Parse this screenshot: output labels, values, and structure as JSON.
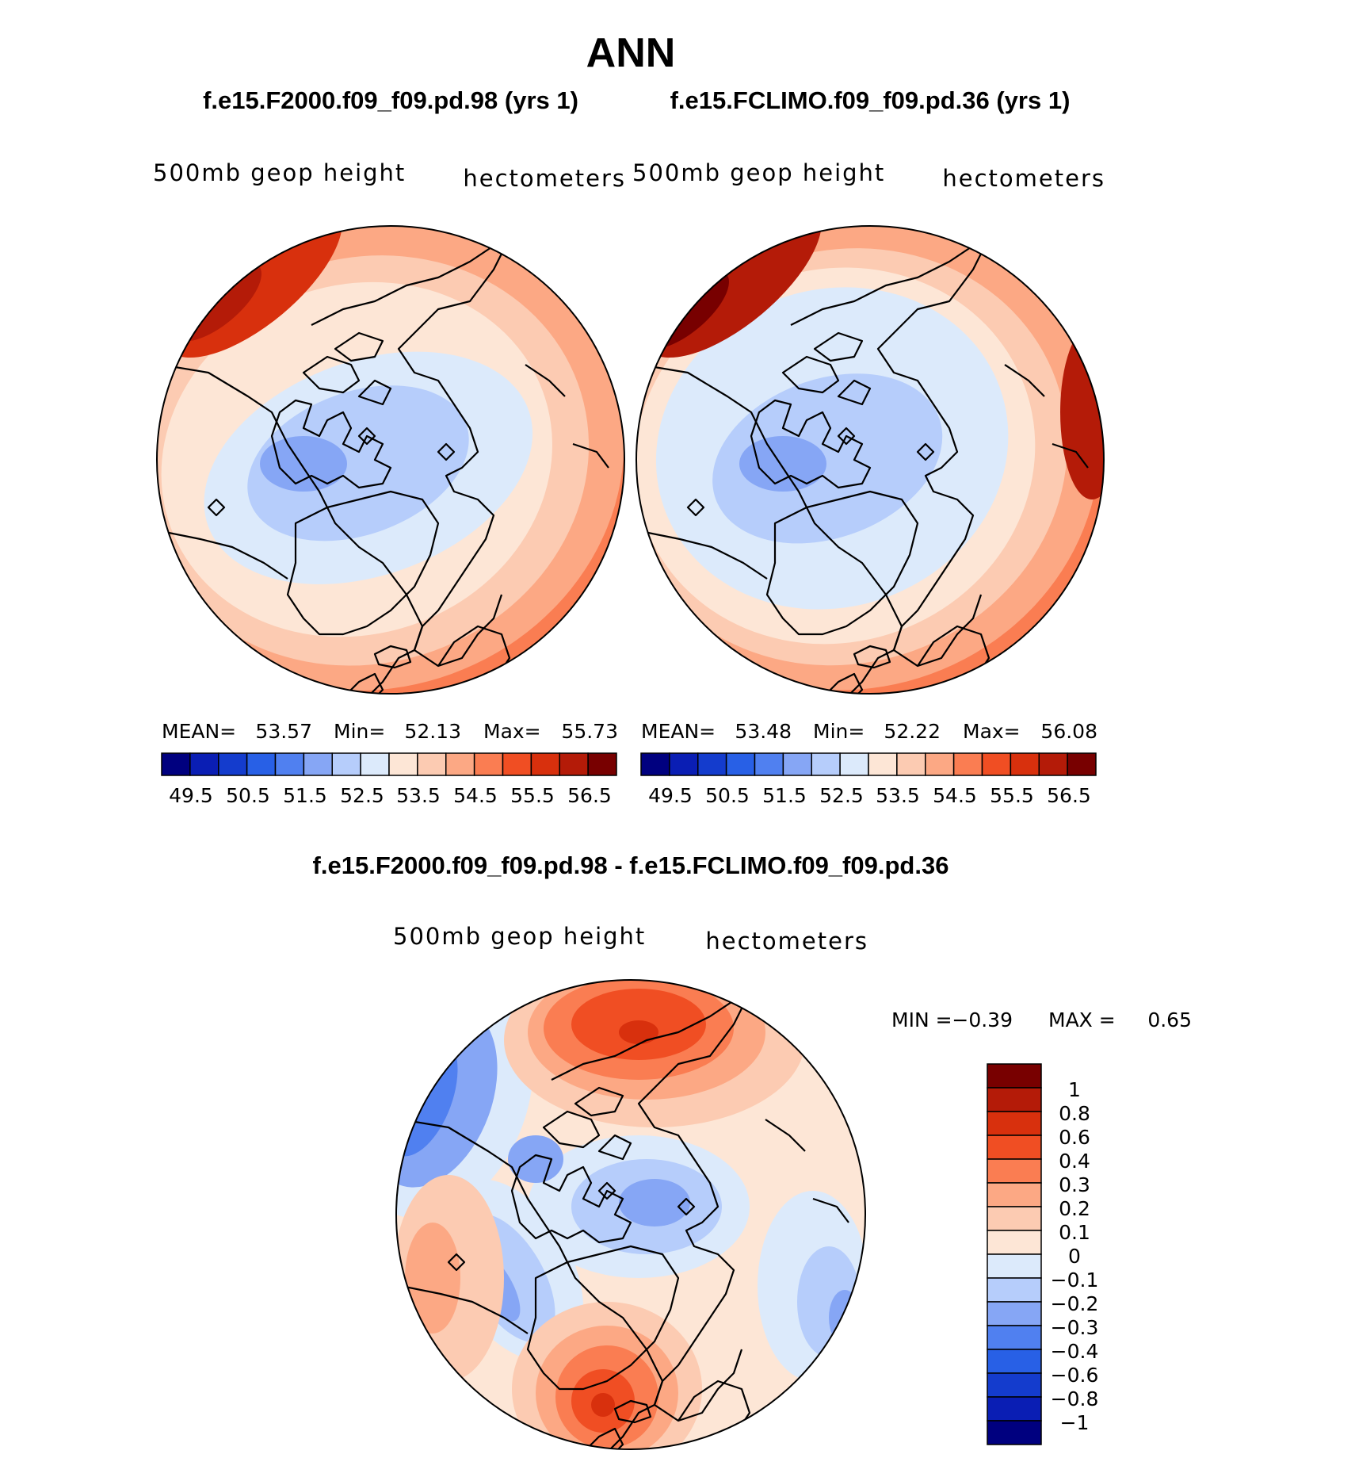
{
  "title": "ANN",
  "colors": {
    "abs_palette": [
      "#00007f",
      "#0a1eb4",
      "#143ccd",
      "#2860e6",
      "#5080f0",
      "#86a6f5",
      "#b6cdfb",
      "#dceafb",
      "#fde6d6",
      "#fccbb2",
      "#fca884",
      "#fa7d52",
      "#f04e23",
      "#d8300d",
      "#b41b08",
      "#780000"
    ],
    "diff_palette": [
      "#00007f",
      "#0a1eb4",
      "#143ccd",
      "#2860e6",
      "#5080f0",
      "#86a6f5",
      "#b6cdfb",
      "#dceafb",
      "#fde6d6",
      "#fccbb2",
      "#fca884",
      "#fa7d52",
      "#f04e23",
      "#d8300d",
      "#b41b08",
      "#780000"
    ]
  },
  "panels": [
    {
      "case": "f.e15.F2000.f09_f09.pd.98 (yrs 1)",
      "variable": "500mb geop height",
      "units": "hectometers",
      "stats": {
        "mean_label": "MEAN=",
        "mean": "53.57",
        "min_label": "Min=",
        "min": "52.13",
        "max_label": "Max=",
        "max": "55.73"
      },
      "colorbar_labels": [
        "49.5",
        "50.5",
        "51.5",
        "52.5",
        "53.5",
        "54.5",
        "55.5",
        "56.5"
      ]
    },
    {
      "case": "f.e15.FCLIMO.f09_f09.pd.36 (yrs 1)",
      "variable": "500mb geop height",
      "units": "hectometers",
      "stats": {
        "mean_label": "MEAN=",
        "mean": "53.48",
        "min_label": "Min=",
        "min": "52.22",
        "max_label": "Max=",
        "max": "56.08"
      },
      "colorbar_labels": [
        "49.5",
        "50.5",
        "51.5",
        "52.5",
        "53.5",
        "54.5",
        "55.5",
        "56.5"
      ]
    }
  ],
  "difference": {
    "title": "f.e15.F2000.f09_f09.pd.98 - f.e15.FCLIMO.f09_f09.pd.36",
    "variable": "500mb geop height",
    "units": "hectometers",
    "min_label": "MIN =",
    "min": "−0.39",
    "max_label": "MAX =",
    "max": "0.65",
    "colorbar_labels": [
      "1",
      "0.8",
      "0.6",
      "0.4",
      "0.3",
      "0.2",
      "0.1",
      "0",
      "−0.1",
      "−0.2",
      "−0.3",
      "−0.4",
      "−0.6",
      "−0.8",
      "−1"
    ]
  }
}
